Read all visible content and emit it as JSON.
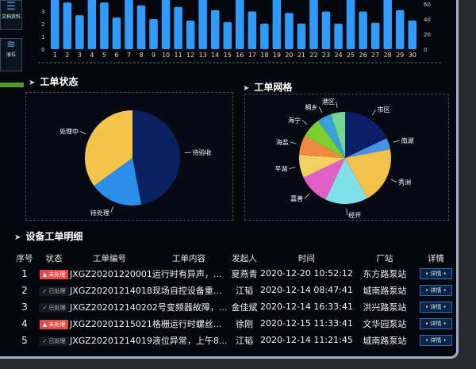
{
  "sidebar": {
    "items": [
      {
        "label": "文档资料",
        "icon": "document-stack-icon"
      },
      {
        "label": "液位",
        "icon": "water-level-icon"
      }
    ]
  },
  "bar_chart": {
    "type": "bar",
    "categories": [
      "1",
      "2",
      "3",
      "4",
      "5",
      "6",
      "7",
      "8",
      "9",
      "10",
      "11",
      "12",
      "13",
      "14",
      "15",
      "16",
      "17",
      "18",
      "19",
      "20",
      "21",
      "22",
      "23",
      "24",
      "25",
      "26",
      "27",
      "28",
      "29",
      "30"
    ],
    "values": [
      75,
      62,
      45,
      75,
      62,
      42,
      75,
      58,
      40,
      75,
      56,
      38,
      75,
      52,
      36,
      75,
      50,
      34,
      75,
      48,
      34,
      75,
      50,
      34,
      75,
      50,
      35,
      75,
      52,
      38
    ],
    "left_ticks": [
      "0",
      "1",
      "2",
      "3"
    ],
    "right_ticks": [
      "0",
      "20",
      "40",
      "60"
    ],
    "color": "#2f9bff"
  },
  "status_section": {
    "title": "工单状态"
  },
  "grid_section": {
    "title": "工单网格"
  },
  "chart_data": [
    {
      "type": "pie",
      "slices": [
        {
          "label": "待验收",
          "value": 47,
          "color": "#0b2260"
        },
        {
          "label": "待处理",
          "value": 18,
          "color": "#2a8ee8"
        },
        {
          "label": "处理中",
          "value": 35,
          "color": "#f3c54a"
        }
      ]
    },
    {
      "type": "pie",
      "slices": [
        {
          "label": "市区",
          "value": 18,
          "color": "#0b1f66"
        },
        {
          "label": "南湖",
          "value": 4,
          "color": "#4a90e8"
        },
        {
          "label": "秀洲",
          "value": 20,
          "color": "#f2c14a"
        },
        {
          "label": "经开",
          "value": 15,
          "color": "#7fe0e8"
        },
        {
          "label": "嘉善",
          "value": 11,
          "color": "#e060c8"
        },
        {
          "label": "平湖",
          "value": 8,
          "color": "#f3d060"
        },
        {
          "label": "海盐",
          "value": 7,
          "color": "#f08a40"
        },
        {
          "label": "海宁",
          "value": 7,
          "color": "#7ccf30"
        },
        {
          "label": "桐乡",
          "value": 5,
          "color": "#3aa0d8"
        },
        {
          "label": "港区",
          "value": 5,
          "color": "#70d890"
        }
      ]
    }
  ],
  "detail_section": {
    "title": "设备工单明细"
  },
  "table": {
    "headers": [
      "序号",
      "状态",
      "工单编号",
      "工单内容",
      "发起人",
      "时间",
      "厂站",
      "详情"
    ],
    "rows": [
      {
        "no": "1",
        "status": "未处理",
        "pending": true,
        "code_content": "JXGZ20201220001运行时有异声，...",
        "person": "夏燕青",
        "time": "2020-12-20 10:52:12",
        "station": "东方路泵站",
        "detail": "详情"
      },
      {
        "no": "2",
        "status": "已处理",
        "pending": false,
        "code_content": "JXGZ20201214018现场自控设备重...",
        "person": "江韬",
        "time": "2020-12-14 08:47:41",
        "station": "城南路泵站",
        "detail": "详情"
      },
      {
        "no": "3",
        "status": "已处理",
        "pending": false,
        "code_content": "JXGZ202012140202号变频器故障，...",
        "person": "金佳斌",
        "time": "2020-12-14 16:33:41",
        "station": "洪兴路泵站",
        "detail": "详情"
      },
      {
        "no": "4",
        "status": "未处理",
        "pending": true,
        "code_content": "JXGZ20201215021格栅运行时螺丝...",
        "person": "徐刚",
        "time": "2020-12-15 11:33:41",
        "station": "文华园泵站",
        "detail": "详情"
      },
      {
        "no": "5",
        "status": "已处理",
        "pending": false,
        "code_content": "JXGZ20201214019液位异常，上午8...",
        "person": "江韬",
        "time": "2020-12-14 11:21:45",
        "station": "城南路泵站",
        "detail": "详情"
      }
    ]
  }
}
